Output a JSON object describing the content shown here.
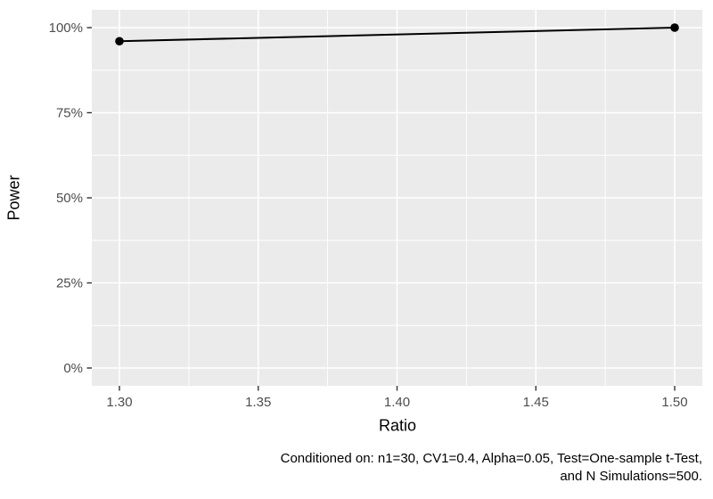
{
  "chart_data": {
    "type": "line",
    "title": "",
    "xlabel": "Ratio",
    "ylabel": "Power",
    "xlim": [
      1.3,
      1.5
    ],
    "ylim": [
      0,
      1
    ],
    "xtick_values": [
      1.3,
      1.35,
      1.4,
      1.45,
      1.5
    ],
    "xtick_labels": [
      "1.30",
      "1.35",
      "1.40",
      "1.45",
      "1.50"
    ],
    "ytick_values": [
      0,
      0.25,
      0.5,
      0.75,
      1.0
    ],
    "ytick_labels": [
      "0%",
      "25%",
      "50%",
      "75%",
      "100%"
    ],
    "xtick_minor_values": [
      1.325,
      1.375,
      1.425,
      1.475
    ],
    "ytick_minor_values": [
      0.125,
      0.375,
      0.625,
      0.875
    ],
    "grid": "on",
    "legend": "none",
    "series": [
      {
        "name": "Power",
        "points": [
          {
            "x": 1.3,
            "y": 0.96,
            "y_label": "96%"
          },
          {
            "x": 1.5,
            "y": 1.0,
            "y_label": "100%"
          }
        ]
      }
    ],
    "caption_line1": "Conditioned on: n1=30, CV1=0.4, Alpha=0.05, Test=One-sample t-Test,",
    "caption_line2": "and N Simulations=500.",
    "colors": {
      "panel_background": "#EBEBEB",
      "gridline": "#FFFFFF",
      "axis_text": "#4D4D4D",
      "tick_mark": "#333333",
      "series_line": "#000000",
      "point_fill": "#000000",
      "title_text": "#000000",
      "figure_background": "#FFFFFF"
    }
  }
}
